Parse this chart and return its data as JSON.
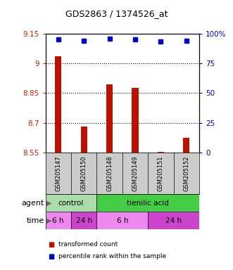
{
  "title": "GDS2863 / 1374526_at",
  "samples": [
    "GSM205147",
    "GSM205150",
    "GSM205148",
    "GSM205149",
    "GSM205151",
    "GSM205152"
  ],
  "bar_values": [
    9.035,
    8.68,
    8.895,
    8.875,
    8.555,
    8.625
  ],
  "percentile_y": [
    9.12,
    9.115,
    9.125,
    9.12,
    9.11,
    9.115
  ],
  "y_min": 8.55,
  "y_max": 9.15,
  "y_ticks": [
    8.55,
    8.7,
    8.85,
    9.0,
    9.15
  ],
  "y_tick_labels": [
    "8.55",
    "8.7",
    "8.85",
    "9",
    "9.15"
  ],
  "right_y_ticks": [
    0,
    25,
    50,
    75,
    100
  ],
  "right_y_tick_labels": [
    "0",
    "25",
    "50",
    "75",
    "100%"
  ],
  "dotted_lines": [
    9.0,
    8.85,
    8.7
  ],
  "bar_color": "#bb1100",
  "percentile_color": "#0000cc",
  "bar_width": 0.25,
  "agent_row": [
    {
      "label": "control",
      "start": 0,
      "end": 2,
      "color": "#aaddaa"
    },
    {
      "label": "tienilic acid",
      "start": 2,
      "end": 6,
      "color": "#44cc44"
    }
  ],
  "time_row": [
    {
      "label": "6 h",
      "start": 0,
      "end": 1,
      "color": "#ee88ee"
    },
    {
      "label": "24 h",
      "start": 1,
      "end": 2,
      "color": "#cc44cc"
    },
    {
      "label": "6 h",
      "start": 2,
      "end": 4,
      "color": "#ee88ee"
    },
    {
      "label": "24 h",
      "start": 4,
      "end": 6,
      "color": "#cc44cc"
    }
  ],
  "xlabel_color": "#cc2200",
  "right_axis_color": "#0000cc",
  "legend_items": [
    {
      "color": "#bb1100",
      "label": "transformed count"
    },
    {
      "color": "#0000cc",
      "label": "percentile rank within the sample"
    }
  ],
  "background_color": "#ffffff",
  "plot_bg_color": "#ffffff",
  "sample_box_color": "#cccccc"
}
